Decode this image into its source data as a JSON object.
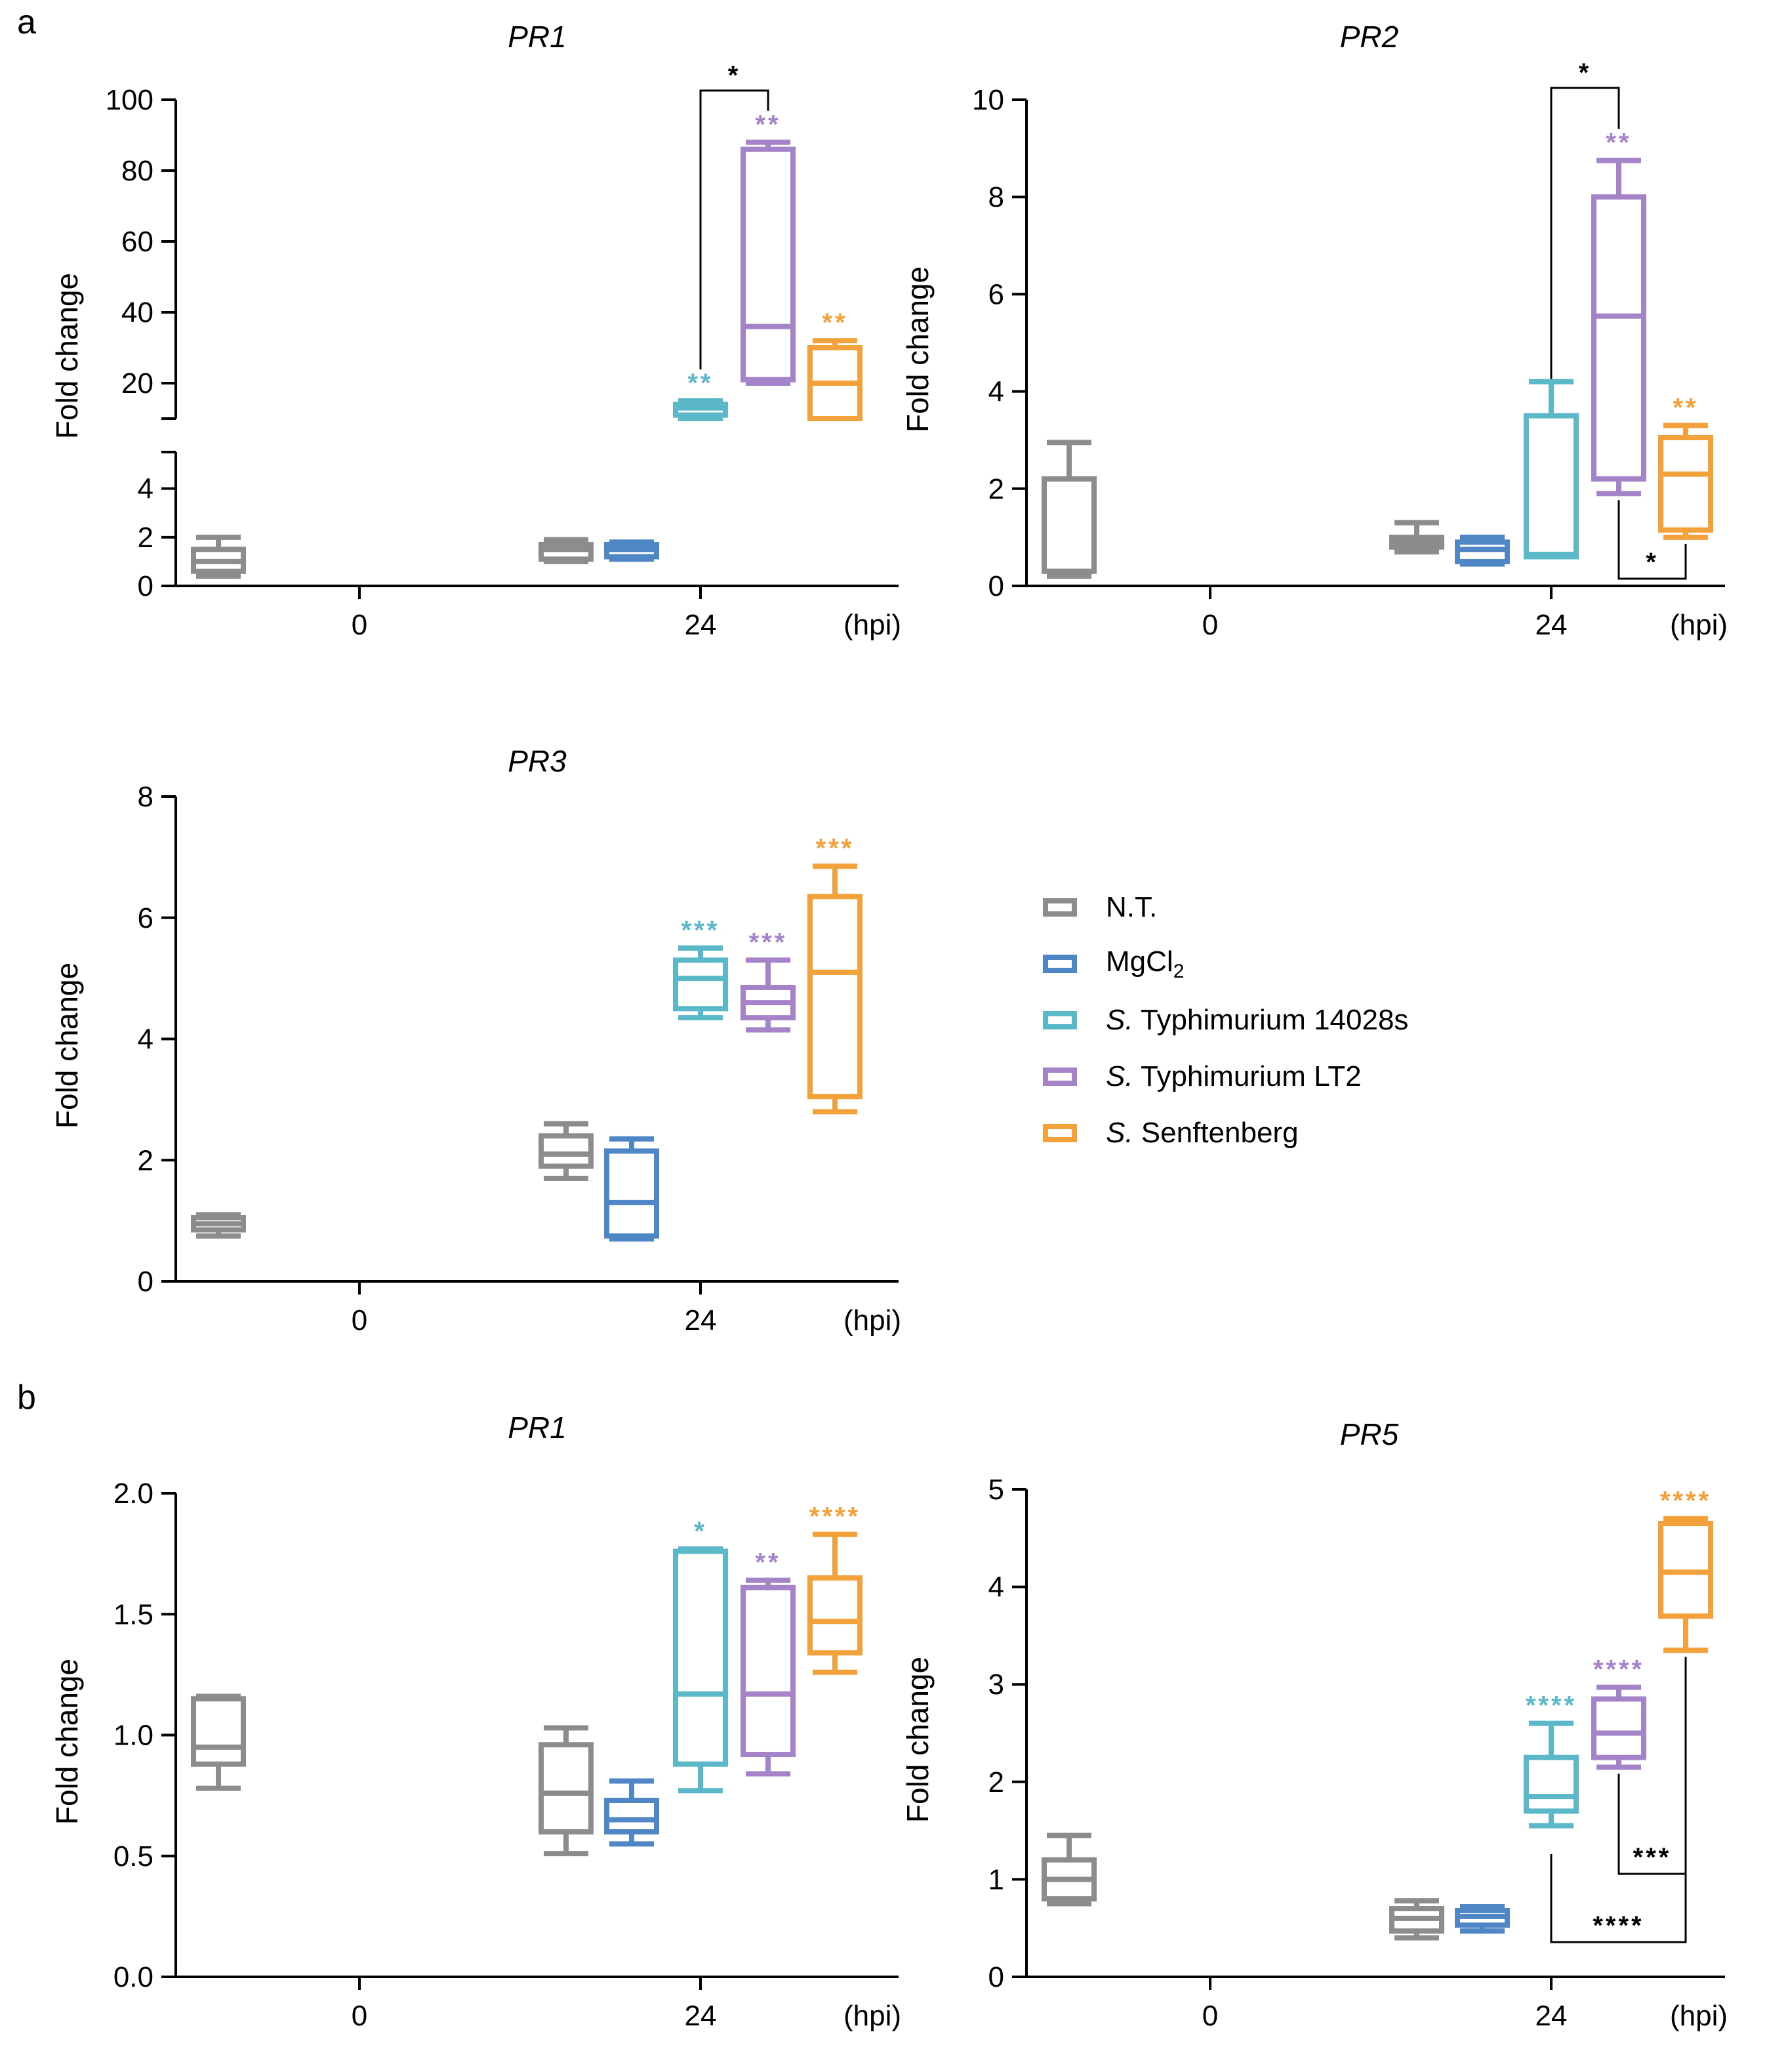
{
  "panel_labels": {
    "a": "a",
    "b": "b"
  },
  "legend": [
    {
      "label": "N.T.",
      "italic_prefix": "",
      "color": "#8C8C8C"
    },
    {
      "label": "MgCl",
      "subscript": "2",
      "italic_prefix": "",
      "color": "#4F86C6"
    },
    {
      "label": " Typhimurium 14028s",
      "italic_prefix": "S.",
      "color": "#5BB8C9"
    },
    {
      "label": " Typhimurium LT2",
      "italic_prefix": "S.",
      "color": "#A583C8"
    },
    {
      "label": " Senftenberg",
      "italic_prefix": "S.",
      "color": "#F2A13B"
    }
  ],
  "chart_data": [
    {
      "id": "a_PR1",
      "type": "box",
      "title": "PR1",
      "ylabel": "Fold change",
      "xunit": "(hpi)",
      "categories": [
        "0",
        "24"
      ],
      "y_broken_axis": true,
      "lower_segment_ylim": [
        0,
        5
      ],
      "lower_segment_ticks": [
        "0",
        "2",
        "4"
      ],
      "upper_segment_ylim": [
        10,
        100
      ],
      "upper_segment_ticks": [
        "20",
        "40",
        "60",
        "80",
        "100"
      ],
      "boxes": [
        {
          "group": "N.T.",
          "time": "0",
          "min": 0.4,
          "q1": 0.6,
          "median": 1.0,
          "q3": 1.5,
          "max": 2.0,
          "sig": ""
        },
        {
          "group": "N.T.",
          "time": "24",
          "min": 1.0,
          "q1": 1.1,
          "median": 1.5,
          "q3": 1.7,
          "max": 1.9,
          "sig": ""
        },
        {
          "group": "MgCl2",
          "time": "24",
          "min": 1.1,
          "q1": 1.2,
          "median": 1.5,
          "q3": 1.7,
          "max": 1.8,
          "sig": ""
        },
        {
          "group": "S. Typhimurium 14028s",
          "time": "24",
          "min": 10,
          "q1": 11,
          "median": 13,
          "q3": 14,
          "max": 15,
          "sig": "**"
        },
        {
          "group": "S. Typhimurium LT2",
          "time": "24",
          "min": 20,
          "q1": 21,
          "median": 36,
          "q3": 86,
          "max": 88,
          "sig": "**"
        },
        {
          "group": "S. Senftenberg",
          "time": "24",
          "min": 10,
          "q1": 10,
          "median": 20,
          "q3": 30,
          "max": 32,
          "sig": "**"
        }
      ],
      "comparisons": [
        {
          "between": [
            "S. Typhimurium 14028s",
            "S. Typhimurium LT2"
          ],
          "label": "*"
        }
      ]
    },
    {
      "id": "a_PR2",
      "type": "box",
      "title": "PR2",
      "ylabel": "Fold change",
      "xunit": "(hpi)",
      "categories": [
        "0",
        "24"
      ],
      "ylim": [
        0,
        10
      ],
      "yticks": [
        "0",
        "2",
        "4",
        "6",
        "8",
        "10"
      ],
      "boxes": [
        {
          "group": "N.T.",
          "time": "0",
          "min": 0.2,
          "q1": 0.3,
          "median": 0.3,
          "q3": 2.2,
          "max": 2.95,
          "sig": ""
        },
        {
          "group": "N.T.",
          "time": "24",
          "min": 0.7,
          "q1": 0.8,
          "median": 0.9,
          "q3": 1.0,
          "max": 1.3,
          "sig": ""
        },
        {
          "group": "MgCl2",
          "time": "24",
          "min": 0.45,
          "q1": 0.5,
          "median": 0.75,
          "q3": 0.9,
          "max": 1.0,
          "sig": ""
        },
        {
          "group": "S. Typhimurium 14028s",
          "time": "24",
          "min": 0.6,
          "q1": 0.6,
          "median": 0.65,
          "q3": 3.5,
          "max": 4.2,
          "sig": ""
        },
        {
          "group": "S. Typhimurium LT2",
          "time": "24",
          "min": 1.9,
          "q1": 2.2,
          "median": 5.55,
          "q3": 8.0,
          "max": 8.75,
          "sig": "**"
        },
        {
          "group": "S. Senftenberg",
          "time": "24",
          "min": 1.0,
          "q1": 1.15,
          "median": 2.3,
          "q3": 3.05,
          "max": 3.3,
          "sig": "**"
        }
      ],
      "comparisons": [
        {
          "between": [
            "S. Typhimurium 14028s",
            "S. Typhimurium LT2"
          ],
          "label": "*"
        },
        {
          "between": [
            "S. Typhimurium LT2",
            "S. Senftenberg"
          ],
          "label": "*"
        }
      ]
    },
    {
      "id": "a_PR3",
      "type": "box",
      "title": "PR3",
      "ylabel": "Fold change",
      "xunit": "(hpi)",
      "categories": [
        "0",
        "24"
      ],
      "ylim": [
        0,
        8
      ],
      "yticks": [
        "0",
        "2",
        "4",
        "6",
        "8"
      ],
      "boxes": [
        {
          "group": "N.T.",
          "time": "0",
          "min": 0.75,
          "q1": 0.85,
          "median": 0.95,
          "q3": 1.05,
          "max": 1.1,
          "sig": ""
        },
        {
          "group": "N.T.",
          "time": "24",
          "min": 1.7,
          "q1": 1.9,
          "median": 2.1,
          "q3": 2.4,
          "max": 2.6,
          "sig": ""
        },
        {
          "group": "MgCl2",
          "time": "24",
          "min": 0.7,
          "q1": 0.75,
          "median": 1.3,
          "q3": 2.15,
          "max": 2.35,
          "sig": ""
        },
        {
          "group": "S. Typhimurium 14028s",
          "time": "24",
          "min": 4.35,
          "q1": 4.5,
          "median": 5.0,
          "q3": 5.3,
          "max": 5.5,
          "sig": "***"
        },
        {
          "group": "S. Typhimurium LT2",
          "time": "24",
          "min": 4.15,
          "q1": 4.35,
          "median": 4.6,
          "q3": 4.85,
          "max": 5.3,
          "sig": "***"
        },
        {
          "group": "S. Senftenberg",
          "time": "24",
          "min": 2.8,
          "q1": 3.05,
          "median": 5.1,
          "q3": 6.35,
          "max": 6.85,
          "sig": "***"
        }
      ],
      "comparisons": []
    },
    {
      "id": "b_PR1",
      "type": "box",
      "title": "PR1",
      "ylabel": "Fold change",
      "xunit": "(hpi)",
      "categories": [
        "0",
        "24"
      ],
      "ylim": [
        0,
        2
      ],
      "yticks": [
        "0.0",
        "0.5",
        "1.0",
        "1.5",
        "2.0"
      ],
      "boxes": [
        {
          "group": "N.T.",
          "time": "0",
          "min": 0.78,
          "q1": 0.88,
          "median": 0.95,
          "q3": 1.15,
          "max": 1.16,
          "sig": ""
        },
        {
          "group": "N.T.",
          "time": "24",
          "min": 0.51,
          "q1": 0.6,
          "median": 0.76,
          "q3": 0.96,
          "max": 1.03,
          "sig": ""
        },
        {
          "group": "MgCl2",
          "time": "24",
          "min": 0.55,
          "q1": 0.6,
          "median": 0.65,
          "q3": 0.73,
          "max": 0.81,
          "sig": ""
        },
        {
          "group": "S. Typhimurium 14028s",
          "time": "24",
          "min": 0.77,
          "q1": 0.88,
          "median": 1.17,
          "q3": 1.76,
          "max": 1.77,
          "sig": "*"
        },
        {
          "group": "S. Typhimurium LT2",
          "time": "24",
          "min": 0.84,
          "q1": 0.92,
          "median": 1.17,
          "q3": 1.61,
          "max": 1.64,
          "sig": "**"
        },
        {
          "group": "S. Senftenberg",
          "time": "24",
          "min": 1.26,
          "q1": 1.34,
          "median": 1.47,
          "q3": 1.65,
          "max": 1.83,
          "sig": "****"
        }
      ],
      "comparisons": []
    },
    {
      "id": "b_PR5",
      "type": "box",
      "title": "PR5",
      "ylabel": "Fold change",
      "xunit": "(hpi)",
      "categories": [
        "0",
        "24"
      ],
      "ylim": [
        0,
        5
      ],
      "yticks": [
        "0",
        "1",
        "2",
        "3",
        "4",
        "5"
      ],
      "boxes": [
        {
          "group": "N.T.",
          "time": "0",
          "min": 0.75,
          "q1": 0.8,
          "median": 1.0,
          "q3": 1.2,
          "max": 1.45,
          "sig": ""
        },
        {
          "group": "N.T.",
          "time": "24",
          "min": 0.4,
          "q1": 0.47,
          "median": 0.6,
          "q3": 0.7,
          "max": 0.78,
          "sig": ""
        },
        {
          "group": "MgCl2",
          "time": "24",
          "min": 0.47,
          "q1": 0.53,
          "median": 0.62,
          "q3": 0.68,
          "max": 0.72,
          "sig": ""
        },
        {
          "group": "S. Typhimurium 14028s",
          "time": "24",
          "min": 1.55,
          "q1": 1.7,
          "median": 1.85,
          "q3": 2.25,
          "max": 2.6,
          "sig": "****"
        },
        {
          "group": "S. Typhimurium LT2",
          "time": "24",
          "min": 2.15,
          "q1": 2.25,
          "median": 2.5,
          "q3": 2.85,
          "max": 2.97,
          "sig": "****"
        },
        {
          "group": "S. Senftenberg",
          "time": "24",
          "min": 3.35,
          "q1": 3.7,
          "median": 4.15,
          "q3": 4.65,
          "max": 4.7,
          "sig": "****"
        }
      ],
      "comparisons": [
        {
          "between": [
            "S. Typhimurium LT2",
            "S. Senftenberg"
          ],
          "label": "***"
        },
        {
          "between": [
            "S. Typhimurium 14028s",
            "S. Senftenberg"
          ],
          "label": "****"
        }
      ]
    }
  ]
}
